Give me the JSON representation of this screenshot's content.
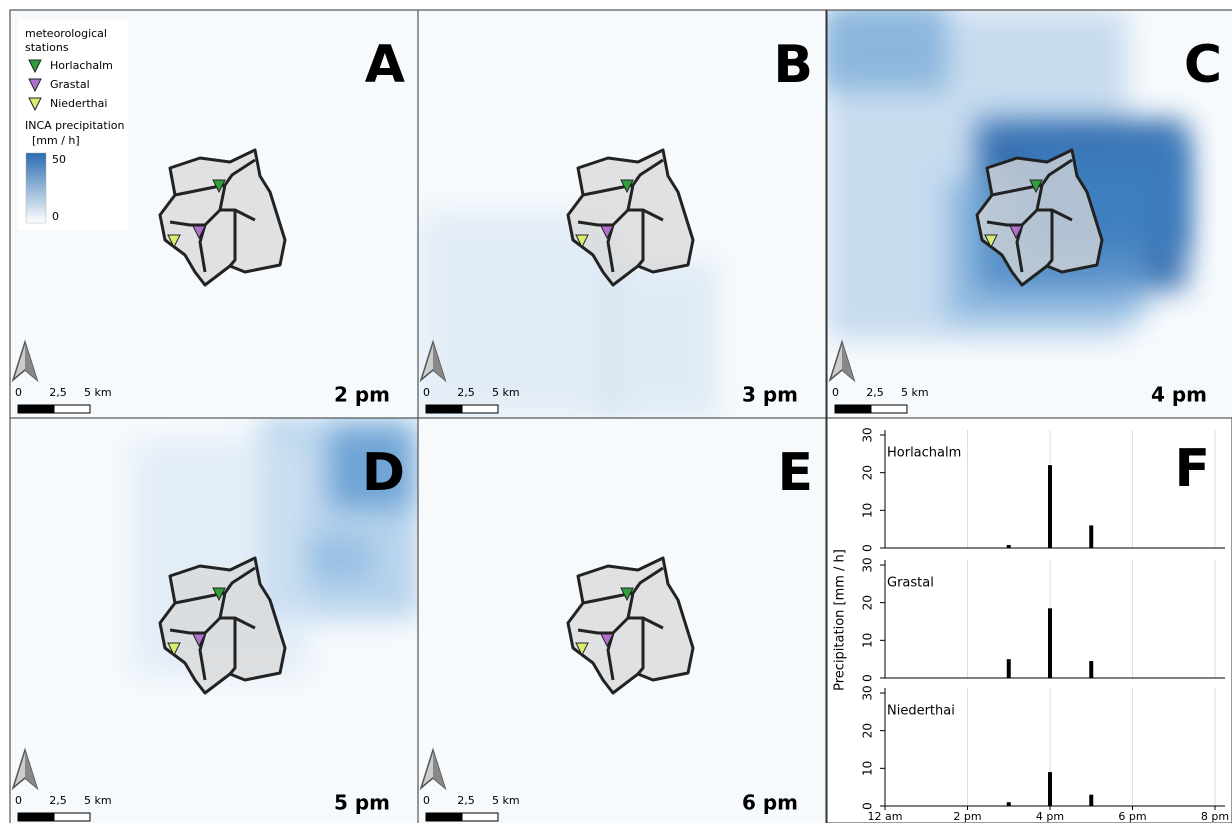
{
  "legend": {
    "title": "meteorological stations",
    "stations": [
      "Horlachalm",
      "Grastal",
      "Niederthai"
    ],
    "station_colors": [
      "#2e9e3a",
      "#b070d0",
      "#d8ec70"
    ],
    "precip_title": "INCA precipitation",
    "precip_unit": "[mm / h]",
    "precip_max": 50,
    "precip_min": 0
  },
  "scale_bar": {
    "labels": [
      "0",
      "2,5",
      "5 km"
    ]
  },
  "panels": [
    {
      "letter": "A",
      "time": "2 pm"
    },
    {
      "letter": "B",
      "time": "3 pm"
    },
    {
      "letter": "C",
      "time": "4 pm"
    },
    {
      "letter": "D",
      "time": "5 pm"
    },
    {
      "letter": "E",
      "time": "6 pm"
    }
  ],
  "chart_data": {
    "type": "bar",
    "letter": "F",
    "ylabel": "Precipitation [mm / h]",
    "x": [
      15,
      16,
      17
    ],
    "xlim": [
      12,
      20
    ],
    "xticks": [
      {
        "value": 12,
        "label": "12 am"
      },
      {
        "value": 14,
        "label": "2 pm"
      },
      {
        "value": 16,
        "label": "4 pm"
      },
      {
        "value": 18,
        "label": "6 pm"
      },
      {
        "value": 20,
        "label": "8 pm"
      }
    ],
    "ylim": [
      0,
      30
    ],
    "yticks": [
      0,
      10,
      20,
      30
    ],
    "grid": true,
    "color": "#000000",
    "series": [
      {
        "name": "Horlachalm",
        "values": [
          0.8,
          22,
          6
        ]
      },
      {
        "name": "Grastal",
        "values": [
          5,
          18.5,
          4.5
        ]
      },
      {
        "name": "Niederthai",
        "values": [
          1,
          9,
          3
        ]
      }
    ]
  }
}
